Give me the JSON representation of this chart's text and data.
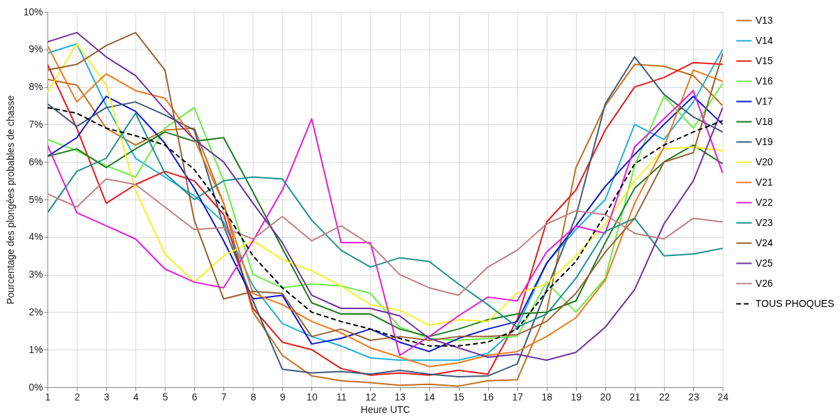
{
  "chart_data": {
    "type": "line",
    "xlabel": "Heure UTC",
    "ylabel": "Pourcentage des plongées probables de chasse",
    "x": [
      1,
      2,
      3,
      4,
      5,
      6,
      7,
      8,
      9,
      10,
      11,
      12,
      13,
      14,
      15,
      16,
      17,
      18,
      19,
      20,
      21,
      22,
      23,
      24
    ],
    "xlim": [
      1,
      24
    ],
    "xticks": [
      1,
      2,
      3,
      4,
      5,
      6,
      7,
      8,
      9,
      10,
      11,
      12,
      13,
      14,
      15,
      16,
      17,
      18,
      19,
      20,
      21,
      22,
      23,
      24
    ],
    "ylim": [
      0,
      10
    ],
    "yticks": [
      {
        "value": 0,
        "label": "0%"
      },
      {
        "value": 1,
        "label": "1%"
      },
      {
        "value": 2,
        "label": "2%"
      },
      {
        "value": 3,
        "label": "3%"
      },
      {
        "value": 4,
        "label": "4%"
      },
      {
        "value": 5,
        "label": "5%"
      },
      {
        "value": 6,
        "label": "6%"
      },
      {
        "value": 7,
        "label": "7%"
      },
      {
        "value": 8,
        "label": "8%"
      },
      {
        "value": 9,
        "label": "9%"
      },
      {
        "value": 10,
        "label": "10%"
      }
    ],
    "grid": true,
    "legend": "right",
    "marker": "none",
    "series": [
      {
        "name": "V13",
        "color": "#c0701c",
        "values": [
          8.2,
          8.05,
          6.9,
          6.45,
          6.85,
          6.9,
          4.9,
          2.0,
          0.85,
          0.3,
          0.17,
          0.12,
          0.05,
          0.08,
          0.03,
          0.17,
          0.2,
          2.0,
          5.85,
          7.5,
          8.6,
          8.55,
          8.3,
          7.5
        ]
      },
      {
        "name": "V14",
        "color": "#1ab0e0",
        "values": [
          8.9,
          9.15,
          7.5,
          6.1,
          5.6,
          5.1,
          4.4,
          2.7,
          1.7,
          1.35,
          1.1,
          0.78,
          0.72,
          0.72,
          0.72,
          0.9,
          1.6,
          3.3,
          4.2,
          5.0,
          7.0,
          6.6,
          7.6,
          9.0
        ]
      },
      {
        "name": "V15",
        "color": "#e81818",
        "values": [
          8.6,
          6.9,
          4.9,
          5.4,
          5.75,
          5.5,
          4.6,
          2.1,
          1.2,
          1.0,
          0.5,
          0.32,
          0.38,
          0.32,
          0.45,
          0.35,
          1.8,
          4.4,
          5.25,
          6.85,
          8.0,
          8.25,
          8.65,
          8.6
        ]
      },
      {
        "name": "V16",
        "color": "#66ee44",
        "values": [
          6.6,
          6.3,
          5.9,
          5.6,
          6.9,
          7.45,
          5.5,
          3.0,
          2.65,
          2.75,
          2.7,
          2.5,
          1.6,
          1.3,
          1.25,
          1.3,
          1.35,
          2.8,
          2.0,
          2.9,
          5.9,
          7.75,
          6.9,
          8.1
        ]
      },
      {
        "name": "V17",
        "color": "#0a14d0",
        "values": [
          6.15,
          6.65,
          7.75,
          7.35,
          6.5,
          5.3,
          3.9,
          2.35,
          2.45,
          1.15,
          1.3,
          1.55,
          1.2,
          0.95,
          1.3,
          1.55,
          1.75,
          3.3,
          4.3,
          5.35,
          6.2,
          7.0,
          7.75,
          7.0
        ]
      },
      {
        "name": "V18",
        "color": "#1a7a1a",
        "values": [
          6.15,
          6.35,
          5.85,
          6.35,
          6.8,
          6.55,
          6.65,
          5.2,
          3.7,
          2.25,
          1.95,
          1.95,
          1.55,
          1.35,
          1.55,
          1.8,
          1.95,
          2.0,
          2.3,
          3.85,
          5.3,
          6.0,
          6.45,
          5.95
        ]
      },
      {
        "name": "V19",
        "color": "#3c5a78",
        "values": [
          7.55,
          6.95,
          7.45,
          7.6,
          7.25,
          6.85,
          4.3,
          2.3,
          0.48,
          0.38,
          0.42,
          0.35,
          0.45,
          0.35,
          0.28,
          0.3,
          0.62,
          2.6,
          4.55,
          7.55,
          8.8,
          7.8,
          7.2,
          6.8
        ]
      },
      {
        "name": "V20",
        "color": "#f8f020",
        "values": [
          7.85,
          9.15,
          8.05,
          5.25,
          3.55,
          2.8,
          3.5,
          3.9,
          3.4,
          3.1,
          2.7,
          2.2,
          2.05,
          1.65,
          1.8,
          1.75,
          2.5,
          2.75,
          3.5,
          4.35,
          5.5,
          6.35,
          6.4,
          6.3
        ]
      },
      {
        "name": "V21",
        "color": "#f07818",
        "values": [
          9.1,
          7.6,
          8.35,
          7.9,
          7.7,
          6.6,
          4.9,
          2.5,
          2.2,
          1.75,
          1.45,
          1.05,
          0.8,
          0.55,
          0.65,
          0.85,
          0.95,
          1.35,
          1.85,
          2.85,
          4.9,
          6.4,
          8.45,
          8.15
        ]
      },
      {
        "name": "V22",
        "color": "#e818e0",
        "values": [
          6.45,
          4.65,
          4.3,
          3.95,
          3.15,
          2.8,
          2.65,
          3.9,
          5.25,
          7.15,
          3.85,
          3.85,
          0.85,
          1.35,
          1.9,
          2.4,
          2.3,
          3.6,
          4.3,
          4.1,
          6.4,
          7.15,
          7.9,
          5.7
        ]
      },
      {
        "name": "V23",
        "color": "#1a9090",
        "values": [
          4.65,
          5.75,
          6.1,
          7.3,
          5.7,
          5.0,
          5.5,
          5.6,
          5.55,
          4.45,
          3.65,
          3.2,
          3.45,
          3.35,
          2.75,
          2.2,
          1.6,
          1.95,
          2.9,
          4.15,
          4.5,
          3.5,
          3.55,
          3.7
        ]
      },
      {
        "name": "V24",
        "color": "#9a6030",
        "values": [
          8.45,
          8.6,
          9.1,
          9.45,
          8.45,
          4.45,
          2.35,
          2.55,
          2.5,
          1.35,
          1.55,
          1.25,
          1.35,
          1.25,
          1.35,
          1.35,
          1.4,
          1.75,
          2.5,
          3.6,
          4.5,
          6.0,
          6.25,
          8.9
        ]
      },
      {
        "name": "V25",
        "color": "#7030a0",
        "values": [
          9.2,
          9.45,
          8.8,
          8.3,
          7.4,
          6.6,
          6.0,
          4.9,
          3.85,
          2.45,
          2.1,
          2.1,
          1.9,
          1.3,
          1.05,
          0.8,
          0.88,
          0.72,
          0.93,
          1.6,
          2.6,
          4.35,
          5.5,
          7.45
        ]
      },
      {
        "name": "V26",
        "color": "#c08080",
        "values": [
          5.15,
          4.8,
          5.55,
          5.4,
          4.8,
          4.2,
          4.25,
          3.95,
          4.55,
          3.9,
          4.3,
          3.8,
          3.0,
          2.65,
          2.45,
          3.2,
          3.65,
          4.35,
          4.7,
          4.6,
          4.1,
          3.95,
          4.5,
          4.4
        ]
      },
      {
        "name": "TOUS PHOQUES",
        "color": "#000000",
        "line_style": "dashed",
        "values": [
          7.45,
          7.3,
          6.9,
          6.7,
          6.45,
          5.8,
          4.75,
          3.5,
          2.65,
          2.0,
          1.75,
          1.55,
          1.3,
          1.1,
          1.1,
          1.2,
          1.55,
          2.55,
          3.35,
          4.6,
          5.95,
          6.45,
          6.8,
          7.1
        ]
      }
    ]
  }
}
